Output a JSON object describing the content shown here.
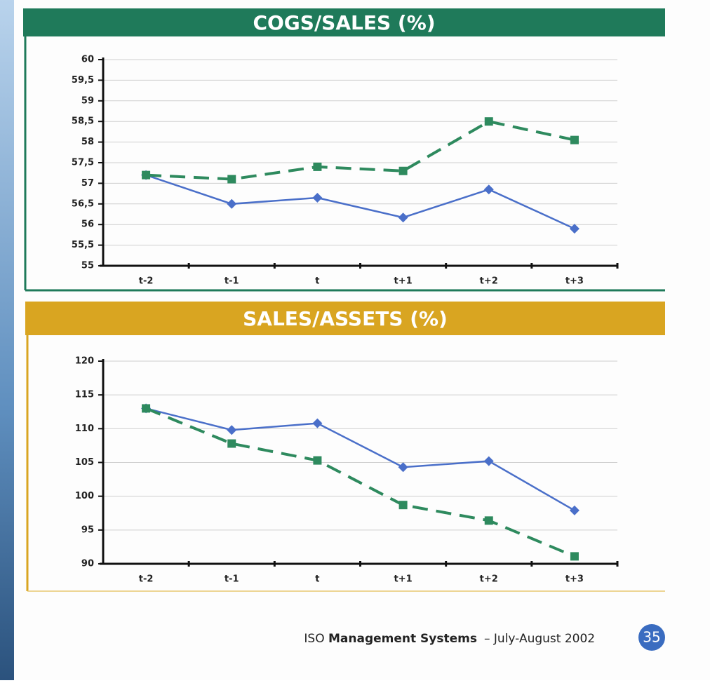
{
  "chart_data": [
    {
      "type": "line",
      "title": "COGS/SALES (%)",
      "header_color": "#1f7a5a",
      "categories": [
        "t-2",
        "t-1",
        "t",
        "t+1",
        "t+2",
        "t+3"
      ],
      "series": [
        {
          "color": "#4a6fc9",
          "style": "solid",
          "marker": "diamond",
          "values": [
            57.2,
            56.5,
            56.65,
            56.17,
            56.85,
            55.9
          ]
        },
        {
          "color": "#2e8a5e",
          "style": "dashed",
          "marker": "square",
          "values": [
            57.2,
            57.1,
            57.4,
            57.3,
            58.5,
            58.05
          ]
        }
      ],
      "ylim": [
        55,
        60
      ],
      "yticks": [
        55,
        {
          "value": 55.5,
          "label": "55,5"
        },
        56,
        {
          "value": 56.5,
          "label": "56,5"
        },
        57,
        {
          "value": 57.5,
          "label": "57,5"
        },
        58,
        {
          "value": 58.5,
          "label": "58,5"
        },
        59,
        {
          "value": 59.5,
          "label": "59,5"
        },
        60
      ],
      "grid": true
    },
    {
      "type": "line",
      "title": "SALES/ASSETS (%)",
      "header_color": "#d9a521",
      "categories": [
        "t-2",
        "t-1",
        "t",
        "t+1",
        "t+2",
        "t+3"
      ],
      "series": [
        {
          "color": "#4a6fc9",
          "style": "solid",
          "marker": "diamond",
          "values": [
            113,
            109.8,
            110.8,
            104.3,
            105.2,
            97.9
          ]
        },
        {
          "color": "#2e8a5e",
          "style": "dashed",
          "marker": "square",
          "values": [
            113,
            107.8,
            105.3,
            98.7,
            96.4,
            91.1
          ]
        }
      ],
      "ylim": [
        90,
        120
      ],
      "yticks": [
        90,
        95,
        100,
        105,
        110,
        115,
        120
      ],
      "grid": true
    }
  ],
  "footer": {
    "prefix": "ISO",
    "name": "Management Systems",
    "issue": "– July-August 2002",
    "page": "35"
  }
}
